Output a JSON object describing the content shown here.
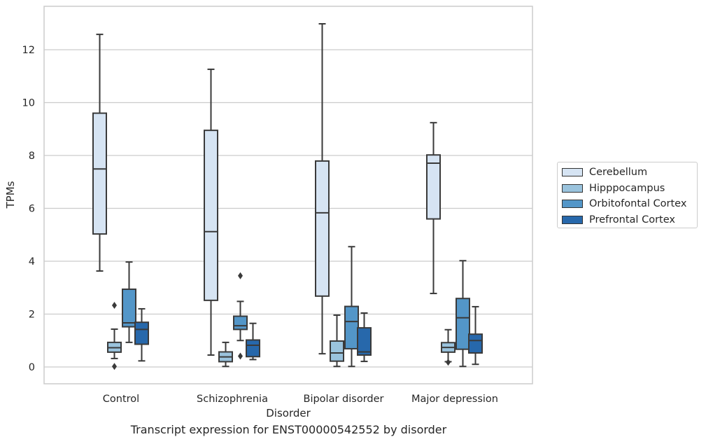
{
  "chart_data": {
    "type": "box",
    "x": [
      "Control",
      "Schizophrenia",
      "Bipolar disorder",
      "Major depression"
    ],
    "xlabel": "Disorder",
    "ylabel": "TPMs",
    "ylim": [
      -0.65,
      13.4
    ],
    "yticks": [
      0,
      2,
      4,
      6,
      8,
      10,
      12
    ],
    "grid": "horizontal",
    "legend_position": "right",
    "caption": "Transcript expression for ENST00000542552 by disorder",
    "series": [
      {
        "name": "Cerebellum",
        "color": "#d6e4f3",
        "boxes": [
          {
            "whislo": 3.63,
            "q1": 5.03,
            "med": 7.49,
            "q3": 9.6,
            "whishi": 12.58,
            "fliers": []
          },
          {
            "whislo": 0.45,
            "q1": 2.52,
            "med": 5.12,
            "q3": 8.95,
            "whishi": 11.26,
            "fliers": []
          },
          {
            "whislo": 0.5,
            "q1": 2.68,
            "med": 5.83,
            "q3": 7.79,
            "whishi": 12.98,
            "fliers": []
          },
          {
            "whislo": 2.78,
            "q1": 5.6,
            "med": 7.71,
            "q3": 8.02,
            "whishi": 9.24,
            "fliers": []
          }
        ]
      },
      {
        "name": "Hipppocampus",
        "color": "#9ac3dd",
        "boxes": [
          {
            "whislo": 0.32,
            "q1": 0.56,
            "med": 0.73,
            "q3": 0.93,
            "whishi": 1.43,
            "fliers": [
              2.33,
              0.02
            ]
          },
          {
            "whislo": 0.02,
            "q1": 0.2,
            "med": 0.38,
            "q3": 0.57,
            "whishi": 0.93,
            "fliers": []
          },
          {
            "whislo": 0.02,
            "q1": 0.22,
            "med": 0.53,
            "q3": 0.98,
            "whishi": 1.96,
            "fliers": []
          },
          {
            "whislo": 0.2,
            "q1": 0.56,
            "med": 0.74,
            "q3": 0.92,
            "whishi": 1.41,
            "fliers": [
              0.18
            ]
          }
        ]
      },
      {
        "name": "Orbitofontal Cortex",
        "color": "#5396c8",
        "boxes": [
          {
            "whislo": 0.93,
            "q1": 1.52,
            "med": 1.67,
            "q3": 2.94,
            "whishi": 3.97,
            "fliers": []
          },
          {
            "whislo": 1.0,
            "q1": 1.42,
            "med": 1.56,
            "q3": 1.92,
            "whishi": 2.48,
            "fliers": [
              3.45,
              0.41
            ]
          },
          {
            "whislo": 0.02,
            "q1": 0.69,
            "med": 1.72,
            "q3": 2.29,
            "whishi": 4.55,
            "fliers": []
          },
          {
            "whislo": 0.02,
            "q1": 0.67,
            "med": 1.86,
            "q3": 2.59,
            "whishi": 4.02,
            "fliers": []
          }
        ]
      },
      {
        "name": "Prefrontal Cortex",
        "color": "#2768ab",
        "boxes": [
          {
            "whislo": 0.23,
            "q1": 0.86,
            "med": 1.42,
            "q3": 1.69,
            "whishi": 2.2,
            "fliers": []
          },
          {
            "whislo": 0.28,
            "q1": 0.39,
            "med": 0.82,
            "q3": 1.02,
            "whishi": 1.65,
            "fliers": []
          },
          {
            "whislo": 0.21,
            "q1": 0.45,
            "med": 0.57,
            "q3": 1.48,
            "whishi": 2.04,
            "fliers": []
          },
          {
            "whislo": 0.1,
            "q1": 0.53,
            "med": 1.0,
            "q3": 1.24,
            "whishi": 2.28,
            "fliers": []
          }
        ]
      }
    ]
  }
}
